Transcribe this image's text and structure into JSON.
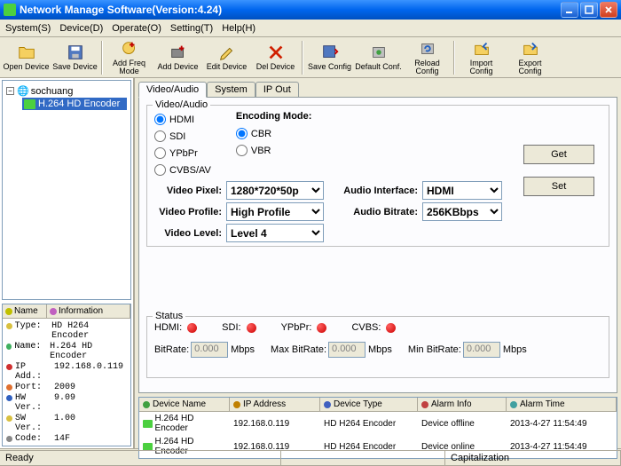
{
  "window": {
    "title": "Network Manage Software(Version:4.24)"
  },
  "menu": {
    "system": "System(S)",
    "device": "Device(D)",
    "operate": "Operate(O)",
    "setting": "Setting(T)",
    "help": "Help(H)"
  },
  "toolbar": {
    "open": "Open Device",
    "save": "Save Device",
    "addfreq": "Add Freq Mode",
    "adddev": "Add Device",
    "editdev": "Edit Device",
    "deldev": "Del Device",
    "saveconf": "Save Config",
    "defconf": "Default Conf.",
    "reloadconf": "Reload Config",
    "impconf": "Import Config",
    "expconf": "Export Config"
  },
  "tree": {
    "root": "sochuang",
    "leaf": "H.264 HD Encoder"
  },
  "info": {
    "hdr_name": "Name",
    "hdr_info": "Information",
    "rows": [
      {
        "c": "#d8c040",
        "l": "Type:",
        "v": "HD H264 Encoder"
      },
      {
        "c": "#40b060",
        "l": "Name:",
        "v": "H.264 HD Encoder"
      },
      {
        "c": "#d03030",
        "l": "IP Add.:",
        "v": "192.168.0.119"
      },
      {
        "c": "#e07030",
        "l": "Port:",
        "v": "2009"
      },
      {
        "c": "#3060c0",
        "l": "HW Ver.:",
        "v": "9.09"
      },
      {
        "c": "#d8c040",
        "l": "SW Ver.:",
        "v": "1.00"
      },
      {
        "c": "#888",
        "l": "Code:",
        "v": "14F"
      }
    ]
  },
  "tabs": {
    "t1": "Video/Audio",
    "t2": "System",
    "t3": "IP Out"
  },
  "va": {
    "group": "Video/Audio",
    "hdmi": "HDMI",
    "sdi": "SDI",
    "ypbpr": "YPbPr",
    "cvbs": "CVBS/AV",
    "enc_label": "Encoding Mode:",
    "cbr": "CBR",
    "vbr": "VBR",
    "get": "Get",
    "set": "Set",
    "vpixel_l": "Video Pixel:",
    "vpixel": "1280*720*50p",
    "vprof_l": "Video Profile:",
    "vprof": "High Profile",
    "vlevel_l": "Video Level:",
    "vlevel": "Level 4",
    "aif_l": "Audio Interface:",
    "aif": "HDMI",
    "ab_l": "Audio Bitrate:",
    "ab": "256KBbps"
  },
  "status": {
    "group": "Status",
    "hdmi": "HDMI:",
    "sdi": "SDI:",
    "ypbpr": "YPbPr:",
    "cvbs": "CVBS:",
    "bitrate": "BitRate:",
    "maxbr": "Max BitRate:",
    "minbr": "Min BitRate:",
    "mbps": "Mbps",
    "val": "0.000",
    "dot_color": "#e00000"
  },
  "dev": {
    "h_name": "Device Name",
    "h_ip": "IP Address",
    "h_type": "Device Type",
    "h_alarm": "Alarm Info",
    "h_time": "Alarm Time",
    "rows": [
      {
        "n": "H.264 HD Encoder",
        "ip": "192.168.0.119",
        "t": "HD H264 Encoder",
        "a": "Device offline",
        "tm": "2013-4-27 11:54:49"
      },
      {
        "n": "H.264 HD Encoder",
        "ip": "192.168.0.119",
        "t": "HD H264 Encoder",
        "a": "Device online",
        "tm": "2013-4-27 11:54:49"
      }
    ]
  },
  "statusbar": {
    "ready": "Ready",
    "caps": "Capitalization"
  },
  "colors": {
    "titlebar_start": "#3a93ff",
    "titlebar_end": "#0050c0",
    "bg": "#ece9d8",
    "panel": "#fcfcfe",
    "border": "#919b9c",
    "input_border": "#7f9db9",
    "selected": "#316ac5"
  }
}
